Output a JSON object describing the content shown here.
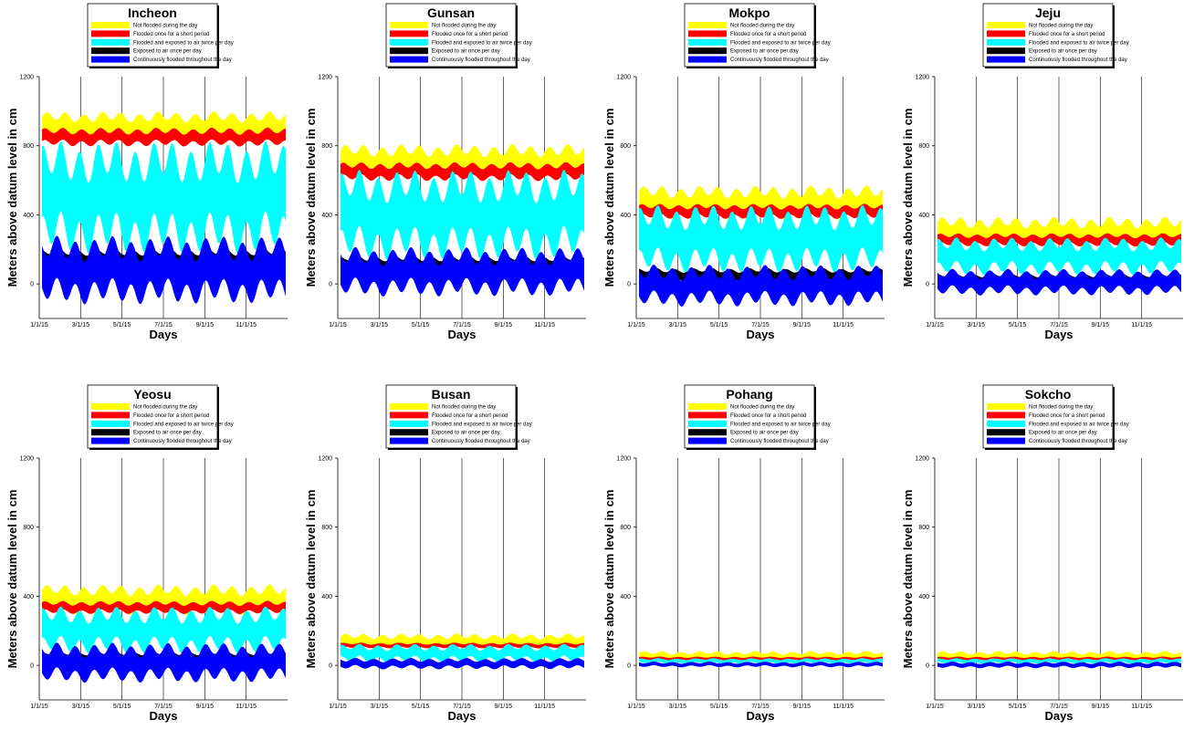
{
  "chart_data": [
    {
      "type": "area",
      "title": "Incheon",
      "xlabel": "Days",
      "ylabel": "Meters above datum level in cm",
      "ylim": [
        -200,
        1200
      ],
      "yticks": [
        0,
        400,
        800,
        1200
      ],
      "xticks": [
        "1/1/15",
        "3/1/15",
        "5/1/15",
        "7/1/15",
        "9/1/15",
        "11/1/15"
      ],
      "series": [
        {
          "name": "Not flooded during the day",
          "values": [
            840,
            990
          ]
        },
        {
          "name": "Flooded once for a short period",
          "values": [
            800,
            900
          ]
        },
        {
          "name": "Flooded and exposed to air twice per day",
          "values": [
            200,
            800
          ]
        },
        {
          "name": "Exposed to air once per day",
          "values": [
            100,
            200
          ]
        },
        {
          "name": "Continuously flooded throughout the day",
          "values": [
            -100,
            260
          ]
        }
      ]
    },
    {
      "type": "area",
      "title": "Gunsan",
      "xlabel": "Days",
      "ylabel": "Meters above datum level in cm",
      "ylim": [
        -200,
        1200
      ],
      "yticks": [
        0,
        400,
        800,
        1200
      ],
      "xticks": [
        "1/1/15",
        "3/1/15",
        "5/1/15",
        "7/1/15",
        "9/1/15",
        "11/1/15"
      ],
      "series": [
        {
          "name": "Not flooded during the day",
          "values": [
            620,
            800
          ]
        },
        {
          "name": "Flooded once for a short period",
          "values": [
            600,
            700
          ]
        },
        {
          "name": "Flooded and exposed to air twice per day",
          "values": [
            160,
            640
          ]
        },
        {
          "name": "Exposed to air once per day",
          "values": [
            80,
            160
          ]
        },
        {
          "name": "Continuously flooded throughout the day",
          "values": [
            -60,
            200
          ]
        }
      ]
    },
    {
      "type": "area",
      "title": "Mokpo",
      "xlabel": "Days",
      "ylabel": "Meters above datum level in cm",
      "ylim": [
        -200,
        1200
      ],
      "yticks": [
        0,
        400,
        800,
        1200
      ],
      "xticks": [
        "1/1/15",
        "3/1/15",
        "5/1/15",
        "7/1/15",
        "9/1/15",
        "11/1/15"
      ],
      "series": [
        {
          "name": "Not flooded during the day",
          "values": [
            380,
            560
          ]
        },
        {
          "name": "Flooded once for a short period",
          "values": [
            380,
            460
          ]
        },
        {
          "name": "Flooded and exposed to air twice per day",
          "values": [
            80,
            440
          ]
        },
        {
          "name": "Exposed to air once per day",
          "values": [
            20,
            90
          ]
        },
        {
          "name": "Continuously flooded throughout the day",
          "values": [
            -120,
            100
          ]
        }
      ]
    },
    {
      "type": "area",
      "title": "Jeju",
      "xlabel": "Days",
      "ylabel": "Meters above datum level in cm",
      "ylim": [
        -200,
        1200
      ],
      "yticks": [
        0,
        400,
        800,
        1200
      ],
      "xticks": [
        "1/1/15",
        "3/1/15",
        "5/1/15",
        "7/1/15",
        "9/1/15",
        "11/1/15"
      ],
      "series": [
        {
          "name": "Not flooded during the day",
          "values": [
            220,
            380
          ]
        },
        {
          "name": "Flooded once for a short period",
          "values": [
            220,
            290
          ]
        },
        {
          "name": "Flooded and exposed to air twice per day",
          "values": [
            60,
            260
          ]
        },
        {
          "name": "Exposed to air once per day",
          "values": [
            0,
            60
          ]
        },
        {
          "name": "Continuously flooded throughout the day",
          "values": [
            -60,
            80
          ]
        }
      ]
    },
    {
      "type": "area",
      "title": "Yeosu",
      "xlabel": "Days",
      "ylabel": "Meters above datum level in cm",
      "ylim": [
        -200,
        1200
      ],
      "yticks": [
        0,
        400,
        800,
        1200
      ],
      "xticks": [
        "1/1/15",
        "3/1/15",
        "5/1/15",
        "7/1/15",
        "9/1/15",
        "11/1/15"
      ],
      "series": [
        {
          "name": "Not flooded during the day",
          "values": [
            300,
            460
          ]
        },
        {
          "name": "Flooded once for a short period",
          "values": [
            300,
            370
          ]
        },
        {
          "name": "Flooded and exposed to air twice per day",
          "values": [
            80,
            330
          ]
        },
        {
          "name": "Exposed to air once per day",
          "values": [
            20,
            80
          ]
        },
        {
          "name": "Continuously flooded throughout the day",
          "values": [
            -90,
            120
          ]
        }
      ]
    },
    {
      "type": "area",
      "title": "Busan",
      "xlabel": "Days",
      "ylabel": "Meters above datum level in cm",
      "ylim": [
        -200,
        1200
      ],
      "yticks": [
        0,
        400,
        800,
        1200
      ],
      "xticks": [
        "1/1/15",
        "3/1/15",
        "5/1/15",
        "7/1/15",
        "9/1/15",
        "11/1/15"
      ],
      "series": [
        {
          "name": "Not flooded during the day",
          "values": [
            100,
            180
          ]
        },
        {
          "name": "Flooded once for a short period",
          "values": [
            100,
            130
          ]
        },
        {
          "name": "Flooded and exposed to air twice per day",
          "values": [
            20,
            120
          ]
        },
        {
          "name": "Exposed to air once per day",
          "values": [
            0,
            20
          ]
        },
        {
          "name": "Continuously flooded throughout the day",
          "values": [
            -20,
            40
          ]
        }
      ]
    },
    {
      "type": "area",
      "title": "Pohang",
      "xlabel": "Days",
      "ylabel": "Meters above datum level in cm",
      "ylim": [
        -200,
        1200
      ],
      "yticks": [
        0,
        400,
        800,
        1200
      ],
      "xticks": [
        "1/1/15",
        "3/1/15",
        "5/1/15",
        "7/1/15",
        "9/1/15",
        "11/1/15"
      ],
      "series": [
        {
          "name": "Not flooded during the day",
          "values": [
            30,
            80
          ]
        },
        {
          "name": "Flooded once for a short period",
          "values": [
            30,
            50
          ]
        },
        {
          "name": "Flooded and exposed to air twice per day",
          "values": [
            10,
            40
          ]
        },
        {
          "name": "Exposed to air once per day",
          "values": [
            0,
            10
          ]
        },
        {
          "name": "Continuously flooded throughout the day",
          "values": [
            -10,
            20
          ]
        }
      ]
    },
    {
      "type": "area",
      "title": "Sokcho",
      "xlabel": "Days",
      "ylabel": "Meters above datum level in cm",
      "ylim": [
        -200,
        1200
      ],
      "yticks": [
        0,
        400,
        800,
        1200
      ],
      "xticks": [
        "1/1/15",
        "3/1/15",
        "5/1/15",
        "7/1/15",
        "9/1/15",
        "11/1/15"
      ],
      "series": [
        {
          "name": "Not flooded during the day",
          "values": [
            30,
            80
          ]
        },
        {
          "name": "Flooded once for a short period",
          "values": [
            30,
            50
          ]
        },
        {
          "name": "Flooded and exposed to air twice per day",
          "values": [
            10,
            40
          ]
        },
        {
          "name": "Exposed to air once per day",
          "values": [
            0,
            10
          ]
        },
        {
          "name": "Continuously flooded throughout the day",
          "values": [
            -15,
            20
          ]
        }
      ]
    }
  ],
  "colors": {
    "not_flooded": "#ffff00",
    "flooded_once": "#ff0000",
    "twice": "#00ffff",
    "exposed_once": "#000000",
    "continuous": "#0000ff"
  }
}
